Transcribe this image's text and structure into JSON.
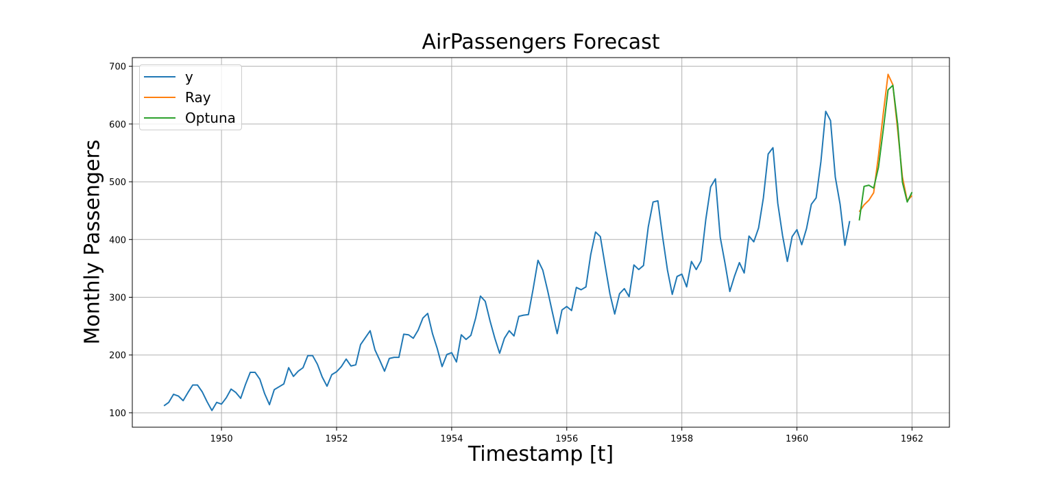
{
  "chart_data": {
    "type": "line",
    "title": "AirPassengers Forecast",
    "xlabel": "Timestamp [t]",
    "ylabel": "Monthly Passengers",
    "xlim": [
      1948.45,
      1962.65
    ],
    "ylim": [
      75,
      715
    ],
    "x_ticks": [
      1950,
      1952,
      1954,
      1956,
      1958,
      1960,
      1962
    ],
    "y_ticks": [
      100,
      200,
      300,
      400,
      500,
      600,
      700
    ],
    "grid": true,
    "legend_position": "top-left",
    "series": [
      {
        "name": "y",
        "color": "#1f77b4",
        "start_year": 1949,
        "step_months": 1,
        "values": [
          112,
          118,
          132,
          129,
          121,
          135,
          148,
          148,
          136,
          119,
          104,
          118,
          115,
          126,
          141,
          135,
          125,
          149,
          170,
          170,
          158,
          133,
          114,
          140,
          145,
          150,
          178,
          163,
          172,
          178,
          199,
          199,
          184,
          162,
          146,
          166,
          171,
          180,
          193,
          181,
          183,
          218,
          230,
          242,
          209,
          191,
          172,
          194,
          196,
          196,
          236,
          235,
          229,
          243,
          264,
          272,
          237,
          211,
          180,
          201,
          204,
          188,
          235,
          227,
          234,
          264,
          302,
          293,
          259,
          229,
          203,
          229,
          242,
          233,
          267,
          269,
          270,
          315,
          364,
          347,
          312,
          274,
          237,
          278,
          284,
          277,
          317,
          313,
          318,
          374,
          413,
          405,
          355,
          306,
          271,
          306,
          315,
          301,
          356,
          348,
          355,
          422,
          465,
          467,
          404,
          347,
          305,
          336,
          340,
          318,
          362,
          348,
          363,
          435,
          491,
          505,
          404,
          359,
          310,
          337,
          360,
          342,
          406,
          396,
          420,
          472,
          548,
          559,
          463,
          407,
          362,
          405,
          417,
          391,
          419,
          461,
          472,
          535,
          622,
          606,
          508,
          461,
          390,
          432
        ]
      },
      {
        "name": "Ray",
        "color": "#ff7f0e",
        "start_year": 1961,
        "start_month_index": 1,
        "step_months": 1,
        "values": [
          448,
          460,
          468,
          481,
          545,
          618,
          686,
          668,
          590,
          508,
          467,
          476
        ]
      },
      {
        "name": "Optuna",
        "color": "#2ca02c",
        "start_year": 1961,
        "start_month_index": 1,
        "step_months": 1,
        "values": [
          433,
          492,
          494,
          489,
          525,
          590,
          659,
          667,
          600,
          499,
          465,
          482
        ]
      }
    ]
  }
}
